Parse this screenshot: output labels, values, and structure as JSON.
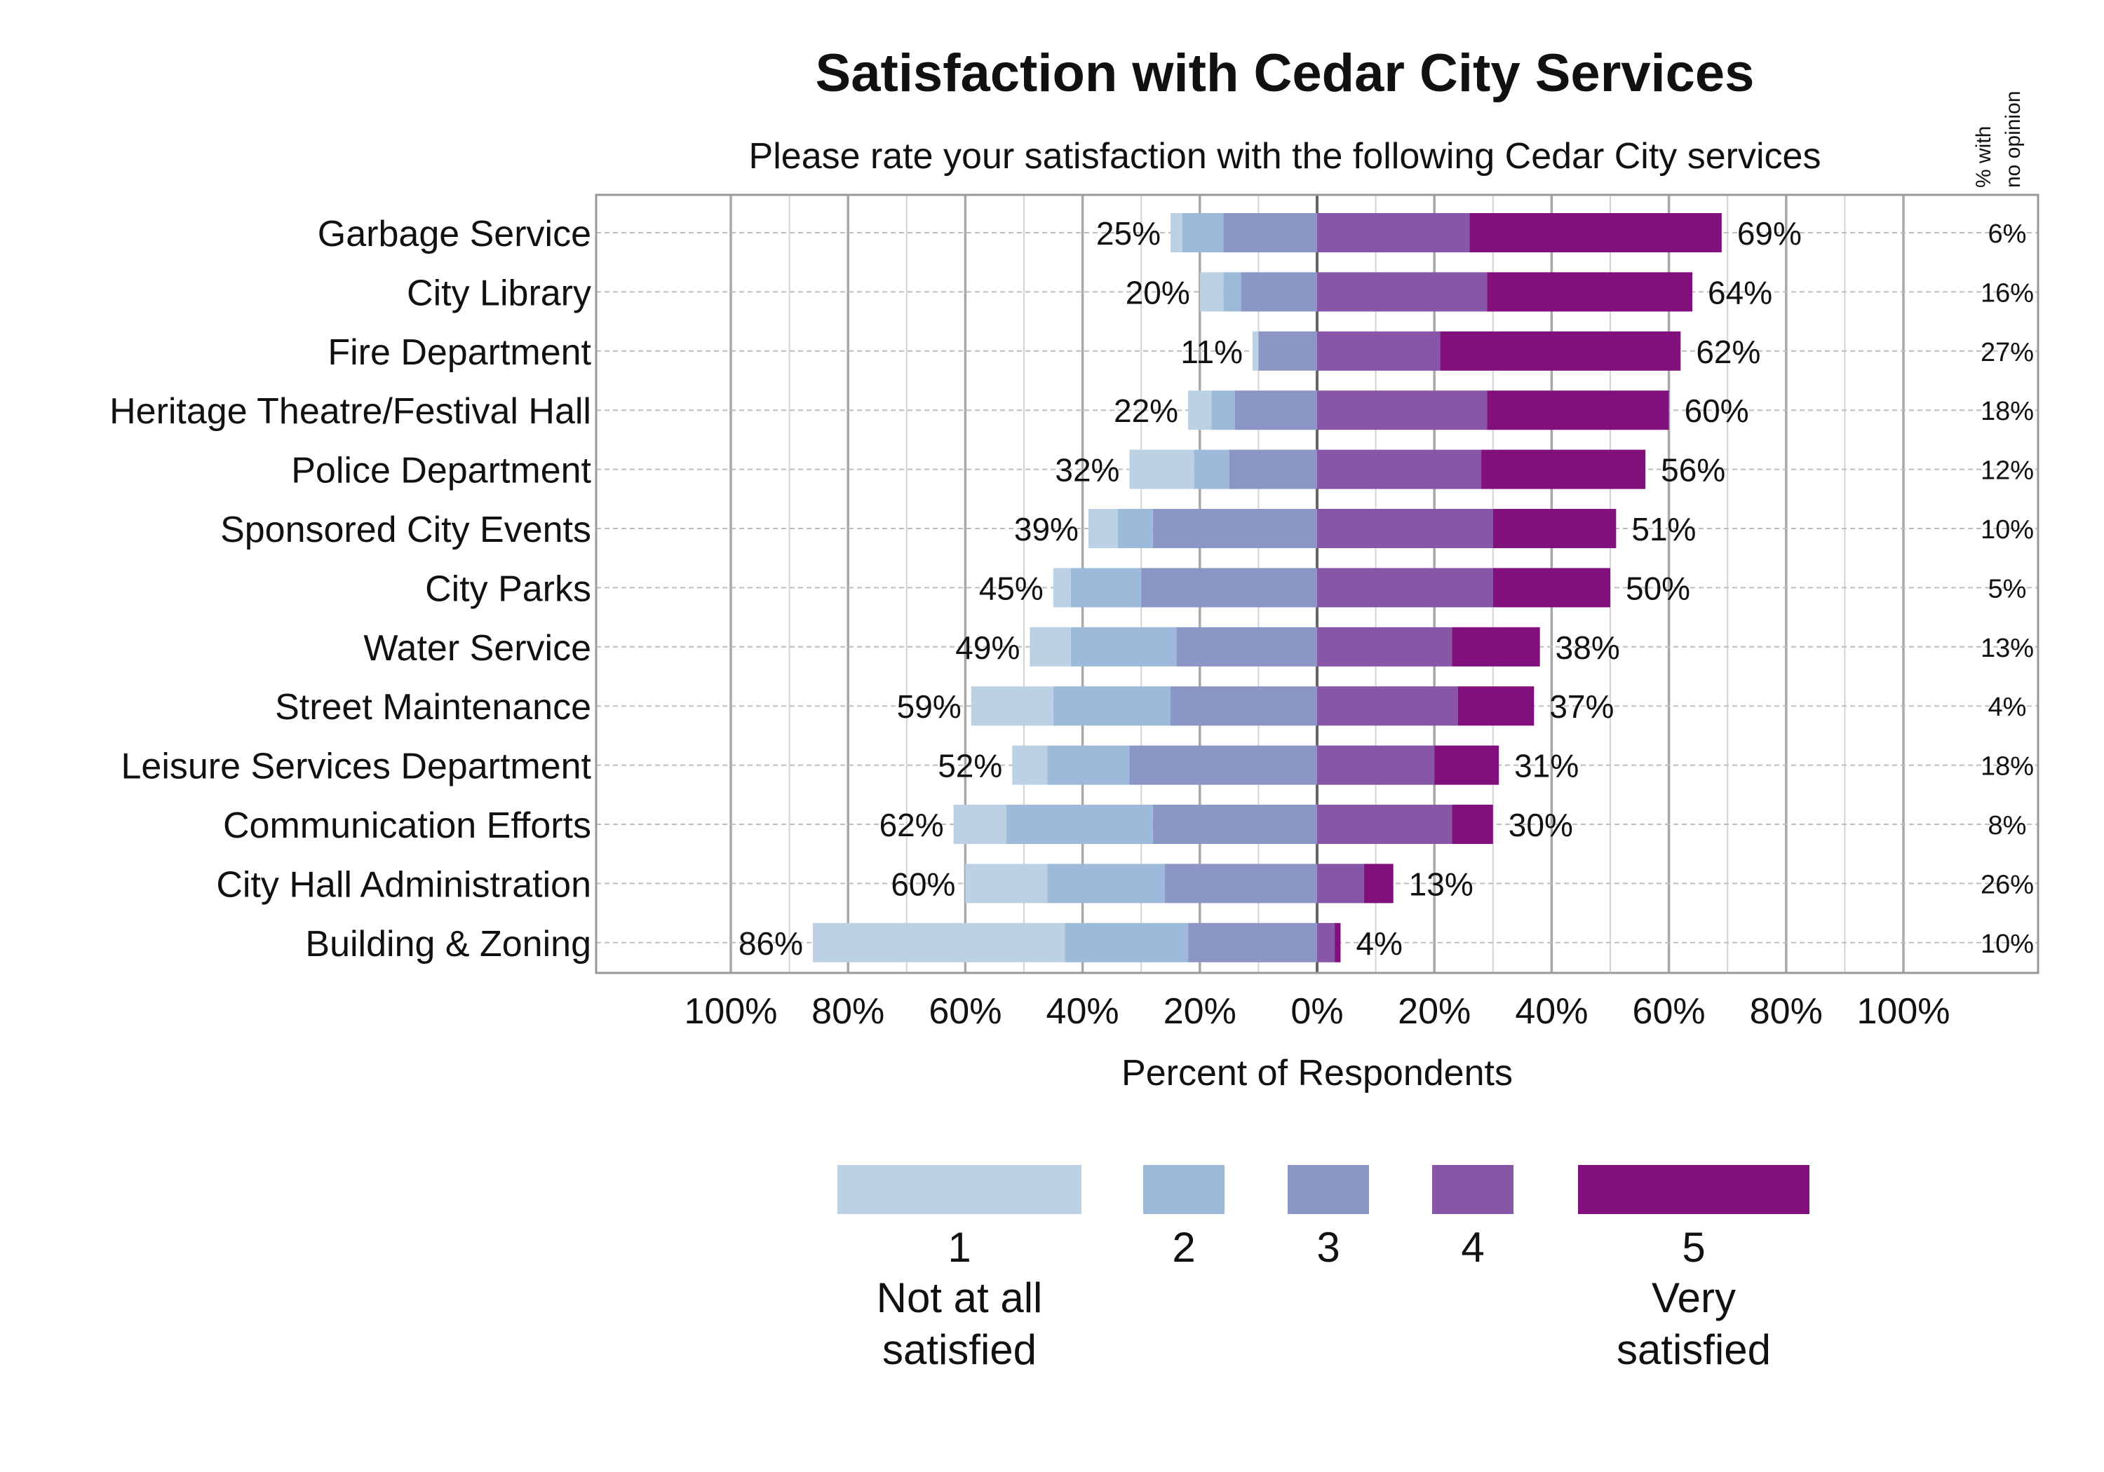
{
  "chart_data": {
    "type": "bar",
    "subtype": "diverging-stacked-likert",
    "title": "Satisfaction with Cedar City Services",
    "subtitle": "Please rate your satisfaction with the following Cedar City services",
    "xlabel": "Percent of Respondents",
    "no_opinion_header": [
      "% with",
      "no opinion"
    ],
    "xlim": [
      -100,
      100
    ],
    "x_ticks": [
      -100,
      -80,
      -60,
      -40,
      -20,
      0,
      20,
      40,
      60,
      80,
      100
    ],
    "x_tick_labels": [
      "100%",
      "80%",
      "60%",
      "40%",
      "20%",
      "0%",
      "20%",
      "40%",
      "60%",
      "80%",
      "100%"
    ],
    "grid": true,
    "legend_position": "bottom",
    "legend": [
      {
        "key": "1",
        "label": [
          "Not at all",
          "satisfied"
        ]
      },
      {
        "key": "2",
        "label": []
      },
      {
        "key": "3",
        "label": []
      },
      {
        "key": "4",
        "label": []
      },
      {
        "key": "5",
        "label": [
          "Very",
          "satisfied"
        ]
      }
    ],
    "colors": [
      "#bdd1e4",
      "#9ebadb",
      "#8c96c6",
      "#8856a7",
      "#810f7c"
    ],
    "categories": [
      "Garbage Service",
      "City Library",
      "Fire Department",
      "Heritage Theatre/Festival Hall",
      "Police Department",
      "Sponsored City Events",
      "City Parks",
      "Water Service",
      "Street Maintenance",
      "Leisure Services Department",
      "Communication Efforts",
      "City Hall Administration",
      "Building & Zoning"
    ],
    "series": [
      {
        "name": "1",
        "values": [
          2,
          4,
          1,
          4,
          11,
          5,
          3,
          7,
          14,
          6,
          9,
          14,
          43
        ]
      },
      {
        "name": "2",
        "values": [
          7,
          3,
          0,
          4,
          6,
          6,
          12,
          18,
          20,
          14,
          25,
          20,
          21
        ]
      },
      {
        "name": "3",
        "values": [
          16,
          13,
          10,
          14,
          15,
          28,
          30,
          24,
          25,
          32,
          28,
          26,
          22
        ]
      },
      {
        "name": "4",
        "values": [
          26,
          29,
          21,
          29,
          28,
          30,
          30,
          23,
          24,
          20,
          23,
          8,
          3
        ]
      },
      {
        "name": "5",
        "values": [
          43,
          35,
          41,
          31,
          28,
          21,
          20,
          15,
          13,
          11,
          7,
          5,
          1
        ]
      }
    ],
    "left_totals": [
      "25%",
      "20%",
      "11%",
      "22%",
      "32%",
      "39%",
      "45%",
      "49%",
      "59%",
      "52%",
      "62%",
      "60%",
      "86%"
    ],
    "right_totals": [
      "69%",
      "64%",
      "62%",
      "60%",
      "56%",
      "51%",
      "50%",
      "38%",
      "37%",
      "31%",
      "30%",
      "13%",
      "4%"
    ],
    "no_opinion": [
      "6%",
      "16%",
      "27%",
      "18%",
      "12%",
      "10%",
      "5%",
      "13%",
      "4%",
      "18%",
      "8%",
      "26%",
      "10%"
    ]
  }
}
